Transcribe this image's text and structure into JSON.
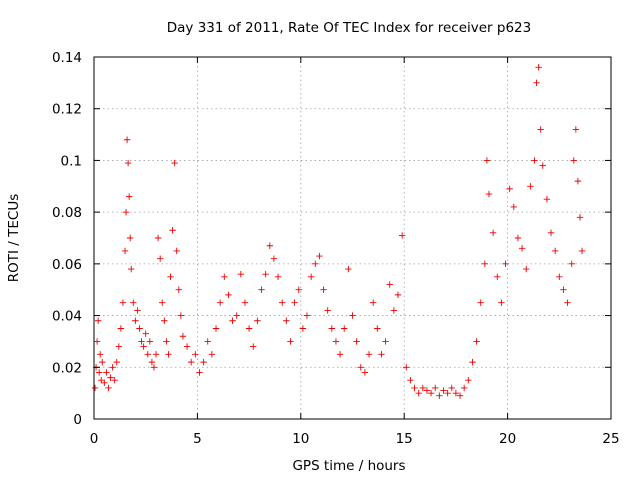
{
  "chart_data": {
    "type": "scatter",
    "title": "Day 331 of 2011, Rate Of TEC Index for receiver p623",
    "xlabel": "GPS time / hours",
    "ylabel": "ROTI / TECUs",
    "xlim": [
      0,
      25
    ],
    "ylim": [
      0,
      0.14
    ],
    "x_ticks": [
      "0",
      "5",
      "10",
      "15",
      "20",
      "25"
    ],
    "y_ticks": [
      "0",
      "0.02",
      "0.04",
      "0.06",
      "0.08",
      "0.1",
      "0.12",
      "0.14"
    ],
    "grid": true,
    "marker": "plus",
    "color": "#ee0000",
    "series": [
      {
        "x": [
          0.05,
          0.1,
          0.15,
          0.2,
          0.25,
          0.3,
          0.35,
          0.4,
          0.5,
          0.6,
          0.7,
          0.8,
          0.9,
          1.0,
          1.1,
          1.2,
          1.3,
          1.4,
          1.5,
          1.55,
          1.6,
          1.65,
          1.7,
          1.75,
          1.8,
          1.9,
          2.0,
          2.1,
          2.2,
          2.3,
          2.4,
          2.5,
          2.6,
          2.7,
          2.8,
          2.9,
          3.0,
          3.1,
          3.2,
          3.3,
          3.4,
          3.5,
          3.6,
          3.7,
          3.8,
          3.9,
          4.0,
          4.1,
          4.2,
          4.3,
          4.5,
          4.7,
          4.9,
          5.1,
          5.3,
          5.5,
          5.7,
          5.9,
          6.1,
          6.3,
          6.5,
          6.7,
          6.9,
          7.1,
          7.3,
          7.5,
          7.7,
          7.9,
          8.1,
          8.3,
          8.5,
          8.7,
          8.9,
          9.1,
          9.3,
          9.5,
          9.7,
          9.9,
          10.1,
          10.3,
          10.5,
          10.7,
          10.9,
          11.1,
          11.3,
          11.5,
          11.7,
          11.9,
          12.1,
          12.3,
          12.5,
          12.7,
          12.9,
          13.1,
          13.3,
          13.5,
          13.7,
          13.9,
          14.1,
          14.3,
          14.5,
          14.7,
          14.9,
          15.1,
          15.3,
          15.5,
          15.7,
          15.9,
          16.1,
          16.3,
          16.5,
          16.7,
          16.9,
          17.1,
          17.3,
          17.5,
          17.7,
          17.9,
          18.1,
          18.3,
          18.5,
          18.7,
          18.9,
          19.0,
          19.1,
          19.3,
          19.5,
          19.7,
          19.9,
          20.1,
          20.3,
          20.5,
          20.7,
          20.9,
          21.1,
          21.3,
          21.4,
          21.5,
          21.6,
          21.7,
          21.9,
          22.1,
          22.3,
          22.5,
          22.7,
          22.9,
          23.1,
          23.2,
          23.3,
          23.4,
          23.5,
          23.6
        ],
        "y": [
          0.012,
          0.02,
          0.03,
          0.038,
          0.018,
          0.025,
          0.015,
          0.022,
          0.014,
          0.018,
          0.012,
          0.016,
          0.02,
          0.015,
          0.022,
          0.028,
          0.035,
          0.045,
          0.065,
          0.08,
          0.108,
          0.099,
          0.086,
          0.07,
          0.058,
          0.045,
          0.038,
          0.042,
          0.035,
          0.03,
          0.028,
          0.033,
          0.025,
          0.03,
          0.022,
          0.02,
          0.025,
          0.07,
          0.062,
          0.045,
          0.038,
          0.03,
          0.025,
          0.055,
          0.073,
          0.099,
          0.065,
          0.05,
          0.04,
          0.032,
          0.028,
          0.022,
          0.025,
          0.018,
          0.022,
          0.03,
          0.025,
          0.035,
          0.045,
          0.055,
          0.048,
          0.038,
          0.04,
          0.056,
          0.045,
          0.035,
          0.028,
          0.038,
          0.05,
          0.056,
          0.067,
          0.062,
          0.055,
          0.045,
          0.038,
          0.03,
          0.045,
          0.05,
          0.035,
          0.04,
          0.055,
          0.06,
          0.063,
          0.05,
          0.042,
          0.035,
          0.03,
          0.025,
          0.035,
          0.058,
          0.04,
          0.03,
          0.02,
          0.018,
          0.025,
          0.045,
          0.035,
          0.025,
          0.03,
          0.052,
          0.042,
          0.048,
          0.071,
          0.02,
          0.015,
          0.012,
          0.01,
          0.012,
          0.011,
          0.01,
          0.012,
          0.009,
          0.011,
          0.01,
          0.012,
          0.01,
          0.009,
          0.012,
          0.015,
          0.022,
          0.03,
          0.045,
          0.06,
          0.1,
          0.087,
          0.072,
          0.055,
          0.045,
          0.06,
          0.089,
          0.082,
          0.07,
          0.066,
          0.058,
          0.09,
          0.1,
          0.13,
          0.136,
          0.112,
          0.098,
          0.085,
          0.072,
          0.065,
          0.055,
          0.05,
          0.045,
          0.06,
          0.1,
          0.112,
          0.092,
          0.078,
          0.065
        ]
      }
    ]
  }
}
